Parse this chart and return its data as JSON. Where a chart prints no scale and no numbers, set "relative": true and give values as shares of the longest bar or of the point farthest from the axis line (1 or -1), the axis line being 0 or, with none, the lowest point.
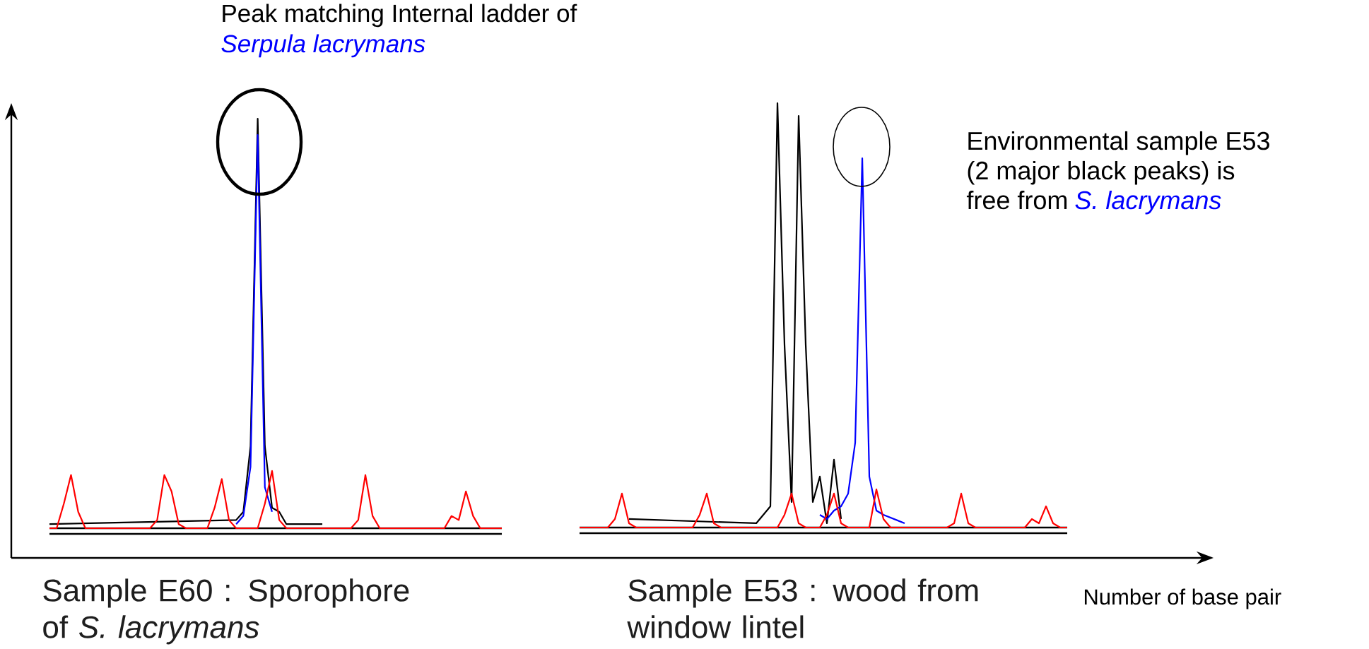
{
  "chart_data": [
    {
      "type": "line",
      "relative": true,
      "xlabel": "Sample E60 : Sporophore of *S. lacrymans*",
      "annotations": [
        "Peak matching Internal ladder of",
        "Serpula lacrymans"
      ],
      "categories": [
        null,
        null,
        null,
        null,
        null,
        null,
        null,
        null,
        null,
        null,
        null,
        null,
        null,
        null,
        null,
        null,
        null,
        null,
        null,
        null,
        null,
        null,
        null,
        null,
        null,
        null,
        null,
        null,
        null,
        null,
        null,
        null,
        null,
        null,
        null,
        null,
        null,
        null,
        null,
        null,
        null,
        null,
        null,
        null,
        null,
        null,
        null,
        null,
        null,
        null,
        null,
        null,
        null,
        null,
        null,
        null,
        null,
        null,
        null,
        null,
        null,
        null,
        null,
        null
      ],
      "series": [
        {
          "color": "#000000",
          "values": [
            0.01,
            null,
            null,
            null,
            null,
            null,
            null,
            null,
            null,
            null,
            null,
            null,
            null,
            null,
            null,
            null,
            null,
            null,
            null,
            null,
            null,
            null,
            null,
            null,
            null,
            null,
            0.02,
            0.04,
            0.2,
            1,
            0.2,
            0.05,
            0.04,
            0.01,
            null,
            null,
            null,
            null,
            0.01,
            null,
            null,
            null,
            null,
            null,
            null,
            null,
            null,
            null,
            null,
            null,
            null,
            null,
            null,
            null,
            null,
            null,
            null,
            null,
            null,
            null,
            null,
            null,
            null,
            null
          ]
        },
        {
          "color": "#0000ff",
          "values": [
            null,
            null,
            null,
            null,
            null,
            null,
            null,
            null,
            null,
            null,
            null,
            null,
            null,
            null,
            null,
            null,
            null,
            null,
            null,
            null,
            null,
            null,
            null,
            null,
            null,
            null,
            0.01,
            0.03,
            0.15,
            0.96,
            0.1,
            0.04,
            null,
            null,
            null,
            null,
            null,
            null,
            null,
            null,
            null,
            null,
            null,
            null,
            null,
            null,
            null,
            null,
            null,
            null,
            null,
            null,
            null,
            null,
            null,
            null,
            null,
            null,
            null,
            null,
            null,
            null,
            null,
            null
          ]
        },
        {
          "color": "#ff0000",
          "values": [
            0,
            0,
            0.06,
            0.13,
            0.04,
            0,
            0,
            0,
            0,
            0,
            0,
            0,
            0,
            0,
            0,
            0.02,
            0.13,
            0.09,
            0.01,
            0,
            0,
            0,
            0,
            0.05,
            0.12,
            0.02,
            0,
            0,
            0,
            0,
            0.06,
            0.14,
            0.02,
            0,
            0,
            0,
            0,
            0,
            0,
            0,
            0,
            0,
            0,
            0.02,
            0.13,
            0.03,
            0,
            0,
            0,
            0,
            0,
            0,
            0,
            0,
            0,
            0,
            0.03,
            0.02,
            0.09,
            0.03,
            0,
            0,
            0,
            0
          ]
        }
      ]
    },
    {
      "type": "line",
      "relative": true,
      "xlabel": "Sample E53 : wood from window lintel",
      "annotations": [
        "Environmental sample E53",
        "(2 major black peaks) is",
        "free from",
        "S. lacrymans",
        "Number of base pair"
      ],
      "categories": [
        null,
        null,
        null,
        null,
        null,
        null,
        null,
        null,
        null,
        null,
        null,
        null,
        null,
        null,
        null,
        null,
        null,
        null,
        null,
        null,
        null,
        null,
        null,
        null,
        null,
        null,
        null,
        null,
        null,
        null,
        null,
        null,
        null,
        null,
        null,
        null,
        null,
        null,
        null,
        null,
        null,
        null,
        null,
        null,
        null,
        null,
        null,
        null,
        null,
        null,
        null,
        null,
        null,
        null,
        null,
        null,
        null,
        null,
        null,
        null,
        null,
        null,
        null,
        null,
        null,
        null,
        null,
        null,
        null,
        null
      ],
      "series": [
        {
          "color": "#000000",
          "values": [
            null,
            null,
            null,
            null,
            null,
            null,
            null,
            0.02,
            null,
            null,
            null,
            null,
            null,
            null,
            null,
            null,
            null,
            null,
            null,
            null,
            null,
            null,
            null,
            null,
            null,
            0.01,
            0.03,
            0.05,
            1,
            0.43,
            0.06,
            0.97,
            0.43,
            0.06,
            0.12,
            0.01,
            0.16,
            0.02,
            null,
            null,
            null,
            null,
            null,
            null,
            null,
            null,
            null,
            null,
            null,
            null,
            null,
            null,
            null,
            null,
            null,
            null,
            null,
            null,
            null,
            null,
            null,
            null,
            null,
            null,
            null,
            null,
            null,
            null,
            null,
            null
          ]
        },
        {
          "color": "#0000ff",
          "values": [
            null,
            null,
            null,
            null,
            null,
            null,
            null,
            null,
            null,
            null,
            null,
            null,
            null,
            null,
            null,
            null,
            null,
            null,
            null,
            null,
            null,
            null,
            null,
            null,
            null,
            null,
            null,
            null,
            null,
            null,
            null,
            null,
            null,
            null,
            0.03,
            0.02,
            0.04,
            0.05,
            0.08,
            0.2,
            0.87,
            0.12,
            0.04,
            0.03,
            null,
            null,
            0.01,
            null,
            null,
            null,
            null,
            null,
            null,
            null,
            null,
            null,
            null,
            null,
            null,
            null,
            null,
            null,
            null,
            null,
            null,
            null,
            null,
            null,
            null,
            null
          ]
        },
        {
          "color": "#ff0000",
          "values": [
            0,
            0,
            0,
            0,
            0,
            0.02,
            0.08,
            0.01,
            0,
            0,
            0,
            0,
            0,
            0,
            0,
            0,
            0,
            0.03,
            0.08,
            0.01,
            0,
            0,
            0,
            0,
            0,
            0,
            0,
            0,
            0,
            0.03,
            0.08,
            0.01,
            0,
            0,
            0,
            0.03,
            0.08,
            0.01,
            0,
            0,
            0,
            0,
            0.09,
            0.02,
            0,
            0,
            0,
            0,
            0,
            0,
            0,
            0,
            0,
            0.01,
            0.08,
            0.01,
            0,
            0,
            0,
            0,
            0,
            0,
            0,
            0,
            0.02,
            0.01,
            0.05,
            0.01,
            0,
            0
          ]
        }
      ]
    }
  ]
}
